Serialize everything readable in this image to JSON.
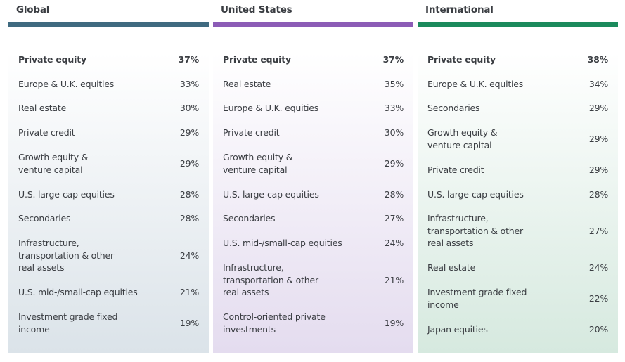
{
  "columns": [
    {
      "title": "Global",
      "color": "#3f6a80",
      "tint": "#dbe3e9",
      "items": [
        {
          "label": "Private equity",
          "value": "37%"
        },
        {
          "label": "Europe & U.K. equities",
          "value": "33%"
        },
        {
          "label": "Real estate",
          "value": "30%"
        },
        {
          "label": "Private credit",
          "value": "29%"
        },
        {
          "label": "Growth equity &\nventure capital",
          "value": "29%"
        },
        {
          "label": "U.S. large-cap equities",
          "value": "28%"
        },
        {
          "label": "Secondaries",
          "value": "28%"
        },
        {
          "label": "Infrastructure,\ntransportation & other\nreal assets",
          "value": "24%"
        },
        {
          "label": "U.S. mid-/small-cap equities",
          "value": "21%"
        },
        {
          "label": "Investment grade fixed income",
          "value": "19%"
        }
      ]
    },
    {
      "title": "United States",
      "color": "#8c5cb6",
      "tint": "#e4dcef",
      "items": [
        {
          "label": "Private equity",
          "value": "37%"
        },
        {
          "label": "Real estate",
          "value": "35%"
        },
        {
          "label": "Europe & U.K. equities",
          "value": "33%"
        },
        {
          "label": "Private credit",
          "value": "30%"
        },
        {
          "label": "Growth equity &\nventure capital",
          "value": "29%"
        },
        {
          "label": "U.S. large-cap equities",
          "value": "28%"
        },
        {
          "label": "Secondaries",
          "value": "27%"
        },
        {
          "label": "U.S. mid-/small-cap equities",
          "value": "24%"
        },
        {
          "label": "Infrastructure,\ntransportation & other\nreal assets",
          "value": "21%"
        },
        {
          "label": "Control-oriented private\ninvestments",
          "value": "19%"
        }
      ]
    },
    {
      "title": "International",
      "color": "#1b8a5c",
      "tint": "#d6e9df",
      "items": [
        {
          "label": "Private equity",
          "value": "38%"
        },
        {
          "label": "Europe & U.K. equities",
          "value": "34%"
        },
        {
          "label": "Secondaries",
          "value": "29%"
        },
        {
          "label": "Growth equity &\nventure capital",
          "value": "29%"
        },
        {
          "label": "Private credit",
          "value": "29%"
        },
        {
          "label": "U.S. large-cap equities",
          "value": "28%"
        },
        {
          "label": "Infrastructure,\ntransportation & other\nreal assets",
          "value": "27%"
        },
        {
          "label": "Real estate",
          "value": "24%"
        },
        {
          "label": "Investment grade fixed income",
          "value": "22%"
        },
        {
          "label": "Japan equities",
          "value": "20%"
        }
      ]
    }
  ]
}
